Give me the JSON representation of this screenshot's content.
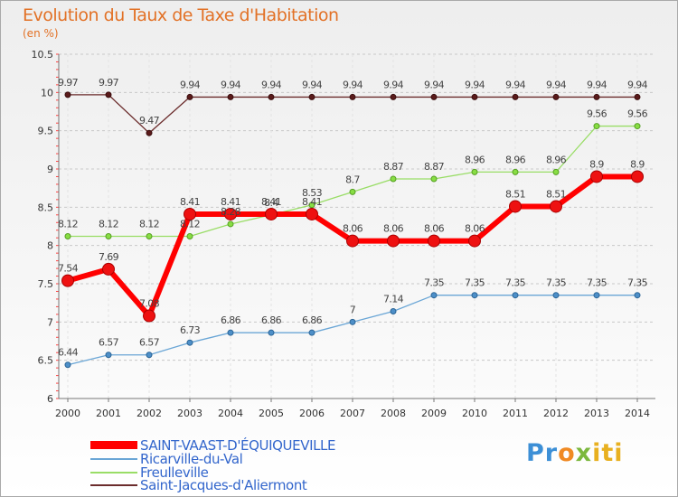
{
  "chart_data": {
    "type": "line",
    "title": "Evolution du Taux de Taxe d'Habitation",
    "subtitle": "(en %)",
    "x": [
      "2000",
      "2001",
      "2002",
      "2003",
      "2004",
      "2005",
      "2006",
      "2007",
      "2008",
      "2009",
      "2010",
      "2011",
      "2012",
      "2013",
      "2014"
    ],
    "ylim": [
      6,
      10.5
    ],
    "yticks": [
      "6",
      "6.5",
      "7",
      "7.5",
      "8",
      "8.5",
      "9",
      "9.5",
      "10",
      "10.5"
    ],
    "grid": "horizontal dashed",
    "legend_position": "bottom-left",
    "series": [
      {
        "name": "SAINT-VAAST-D'ÉQUIQUEVILLE",
        "color": "#ff0000",
        "values": [
          7.54,
          7.69,
          7.08,
          8.41,
          8.41,
          8.41,
          8.41,
          8.06,
          8.06,
          8.06,
          8.06,
          8.51,
          8.51,
          8.9,
          8.9
        ],
        "labels": [
          "7.54",
          "7.69",
          "7.08",
          "8.41",
          "8.41",
          "8.41",
          "8.41",
          "8.06",
          "8.06",
          "8.06",
          "8.06",
          "8.51",
          "8.51",
          "8.9",
          "8.9"
        ]
      },
      {
        "name": "Ricarville-du-Val",
        "color": "#6aa6d6",
        "values": [
          6.44,
          6.57,
          6.57,
          6.73,
          6.86,
          6.86,
          6.86,
          7,
          7.14,
          7.35,
          7.35,
          7.35,
          7.35,
          7.35,
          7.35
        ],
        "labels": [
          "6.44",
          "6.57",
          "6.57",
          "6.73",
          "6.86",
          "6.86",
          "6.86",
          "7",
          "7.14",
          "7.35",
          "7.35",
          "7.35",
          "7.35",
          "7.35",
          "7.35"
        ]
      },
      {
        "name": "Freulleville",
        "color": "#99dd66",
        "values": [
          8.12,
          8.12,
          8.12,
          8.12,
          8.28,
          8.4,
          8.53,
          8.7,
          8.87,
          8.87,
          8.96,
          8.96,
          8.96,
          9.56,
          9.56
        ],
        "labels": [
          "8.12",
          "8.12",
          "8.12",
          "8.12",
          "8.28",
          "8.4",
          "8.53",
          "8.7",
          "8.87",
          "8.87",
          "8.96",
          "8.96",
          "8.96",
          "9.56",
          "9.56"
        ]
      },
      {
        "name": "Saint-Jacques-d'Aliermont",
        "color": "#6b2c2c",
        "values": [
          9.97,
          9.97,
          9.47,
          9.94,
          9.94,
          9.94,
          9.94,
          9.94,
          9.94,
          9.94,
          9.94,
          9.94,
          9.94,
          9.94,
          9.94
        ],
        "labels": [
          "9.97",
          "9.97",
          "9.47",
          "9.94",
          "9.94",
          "9.94",
          "9.94",
          "9.94",
          "9.94",
          "9.94",
          "9.94",
          "9.94",
          "9.94",
          "9.94",
          "9.94"
        ]
      }
    ]
  },
  "logo": {
    "p1": "Pr",
    "p2": "o",
    "p3": "x",
    "p4": "iti"
  }
}
